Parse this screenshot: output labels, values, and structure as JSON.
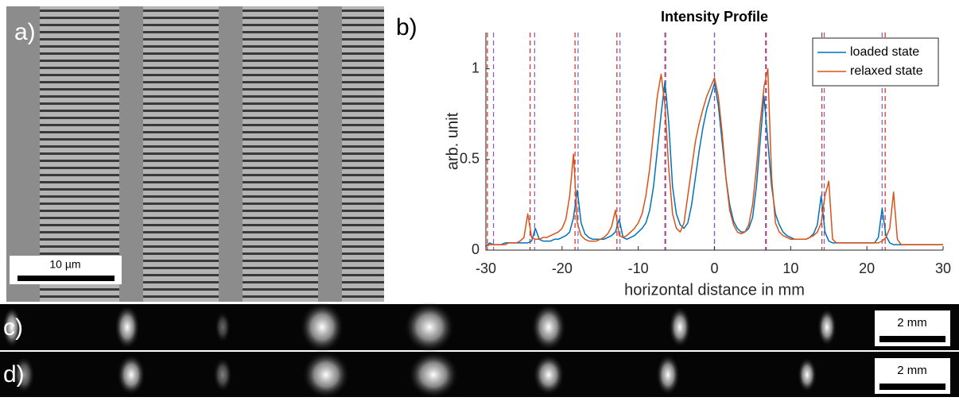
{
  "panel_labels": {
    "a": "a)",
    "b": "b)",
    "c": "c)",
    "d": "d)"
  },
  "scale_bars": {
    "a": "10 µm",
    "c": "2 mm",
    "d": "2 mm"
  },
  "chart_data": {
    "type": "line",
    "title": "Intensity Profile",
    "x_label": "horizontal distance in mm",
    "y_label": "arb. unit",
    "xlim": [
      -30,
      30
    ],
    "ylim": [
      0,
      1.2
    ],
    "xticks": [
      -30,
      -20,
      -10,
      0,
      10,
      20,
      30
    ],
    "yticks": [
      0,
      0.5,
      1
    ],
    "legend": "upper right",
    "x": [
      -30,
      -29.5,
      -29,
      -28.5,
      -28,
      -27.5,
      -27,
      -26.5,
      -26,
      -25.5,
      -25,
      -24.5,
      -24,
      -23.5,
      -23,
      -22.5,
      -22,
      -21.5,
      -21,
      -20.5,
      -20,
      -19.5,
      -19,
      -18.5,
      -18,
      -17.5,
      -17,
      -16.5,
      -16,
      -15.5,
      -15,
      -14.5,
      -14,
      -13.5,
      -13,
      -12.5,
      -12,
      -11.5,
      -11,
      -10.5,
      -10,
      -9.5,
      -9,
      -8.5,
      -8,
      -7.5,
      -7,
      -6.5,
      -6,
      -5.5,
      -5,
      -4.5,
      -4,
      -3.5,
      -3,
      -2.5,
      -2,
      -1.5,
      -1,
      -0.5,
      0,
      0.5,
      1,
      1.5,
      2,
      2.5,
      3,
      3.5,
      4,
      4.5,
      5,
      5.5,
      6,
      6.5,
      7,
      7.5,
      8,
      8.5,
      9,
      9.5,
      10,
      10.5,
      11,
      11.5,
      12,
      12.5,
      13,
      13.5,
      14,
      14.5,
      15,
      15.5,
      16,
      16.5,
      17,
      17.5,
      18,
      18.5,
      19,
      19.5,
      20,
      20.5,
      21,
      21.5,
      22,
      22.5,
      23,
      23.5,
      24,
      24.5,
      25,
      25.5,
      26,
      26.5,
      27,
      27.5,
      28,
      28.5,
      29,
      29.5,
      30
    ],
    "series": [
      {
        "name": "loaded state",
        "color": "#0072bd",
        "values": [
          0.02,
          0.04,
          0.03,
          0.03,
          0.03,
          0.04,
          0.04,
          0.04,
          0.04,
          0.04,
          0.04,
          0.04,
          0.05,
          0.12,
          0.06,
          0.05,
          0.05,
          0.05,
          0.06,
          0.06,
          0.07,
          0.08,
          0.1,
          0.18,
          0.33,
          0.15,
          0.09,
          0.07,
          0.06,
          0.06,
          0.06,
          0.06,
          0.07,
          0.08,
          0.1,
          0.17,
          0.07,
          0.06,
          0.07,
          0.08,
          0.1,
          0.12,
          0.15,
          0.22,
          0.35,
          0.55,
          0.75,
          0.93,
          0.7,
          0.35,
          0.2,
          0.14,
          0.12,
          0.15,
          0.25,
          0.4,
          0.55,
          0.68,
          0.78,
          0.85,
          0.92,
          0.8,
          0.6,
          0.4,
          0.25,
          0.16,
          0.12,
          0.1,
          0.1,
          0.12,
          0.18,
          0.35,
          0.6,
          0.85,
          0.6,
          0.35,
          0.2,
          0.14,
          0.1,
          0.08,
          0.07,
          0.06,
          0.06,
          0.06,
          0.06,
          0.07,
          0.09,
          0.14,
          0.3,
          0.1,
          0.05,
          0.04,
          0.04,
          0.04,
          0.04,
          0.04,
          0.04,
          0.04,
          0.04,
          0.04,
          0.04,
          0.04,
          0.04,
          0.07,
          0.23,
          0.08,
          0.04,
          0.03,
          0.03,
          0.03,
          0.03,
          0.03,
          0.03,
          0.03,
          0.03,
          0.03,
          0.03,
          0.03,
          0.03,
          0.03,
          0.03
        ]
      },
      {
        "name": "relaxed state",
        "color": "#d95319",
        "values": [
          0.02,
          0.03,
          0.03,
          0.03,
          0.03,
          0.03,
          0.04,
          0.04,
          0.04,
          0.05,
          0.07,
          0.2,
          0.07,
          0.06,
          0.06,
          0.07,
          0.07,
          0.08,
          0.09,
          0.1,
          0.12,
          0.17,
          0.3,
          0.53,
          0.15,
          0.08,
          0.06,
          0.05,
          0.05,
          0.05,
          0.06,
          0.07,
          0.09,
          0.13,
          0.22,
          0.08,
          0.07,
          0.08,
          0.1,
          0.12,
          0.15,
          0.2,
          0.3,
          0.45,
          0.65,
          0.85,
          0.97,
          0.8,
          0.45,
          0.2,
          0.12,
          0.1,
          0.15,
          0.3,
          0.45,
          0.6,
          0.7,
          0.78,
          0.85,
          0.9,
          0.95,
          0.85,
          0.65,
          0.4,
          0.22,
          0.14,
          0.1,
          0.09,
          0.1,
          0.14,
          0.25,
          0.45,
          0.7,
          0.9,
          1.0,
          0.4,
          0.15,
          0.1,
          0.08,
          0.07,
          0.06,
          0.06,
          0.06,
          0.06,
          0.06,
          0.07,
          0.08,
          0.1,
          0.15,
          0.3,
          0.38,
          0.06,
          0.04,
          0.04,
          0.04,
          0.04,
          0.04,
          0.04,
          0.04,
          0.04,
          0.04,
          0.04,
          0.04,
          0.04,
          0.05,
          0.07,
          0.12,
          0.32,
          0.06,
          0.03,
          0.03,
          0.03,
          0.03,
          0.03,
          0.03,
          0.03,
          0.03,
          0.03,
          0.03,
          0.03,
          0.03
        ]
      }
    ],
    "reference_lines": [
      {
        "color": "#d62728",
        "x": [
          -29.8,
          -24.2,
          -18.3,
          -12.8,
          -6.5,
          0,
          6.8,
          14.1,
          22.4
        ]
      },
      {
        "color": "#7e5cc7",
        "x": [
          -29,
          -23.6,
          -17.9,
          -12.4,
          -6.4,
          0,
          6.7,
          14.4,
          22
        ]
      }
    ]
  }
}
